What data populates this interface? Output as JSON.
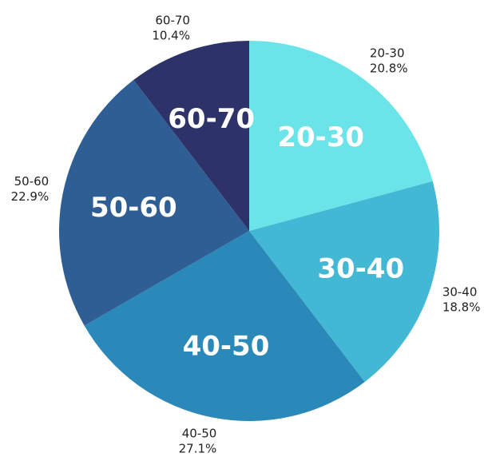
{
  "chart_data": {
    "type": "pie",
    "title": "",
    "start": "12 o'clock",
    "direction": "clockwise",
    "slices": [
      {
        "label": "20-30",
        "value": 20.8,
        "percent_label": "20.8%",
        "color": "#6ae4e9"
      },
      {
        "label": "30-40",
        "value": 18.8,
        "percent_label": "18.8%",
        "color": "#42b8d5"
      },
      {
        "label": "40-50",
        "value": 27.1,
        "percent_label": "27.1%",
        "color": "#2a89b8"
      },
      {
        "label": "50-60",
        "value": 22.9,
        "percent_label": "22.9%",
        "color": "#2f5e95"
      },
      {
        "label": "60-70",
        "value": 10.4,
        "percent_label": "10.4%",
        "color": "#2d3368"
      }
    ]
  }
}
